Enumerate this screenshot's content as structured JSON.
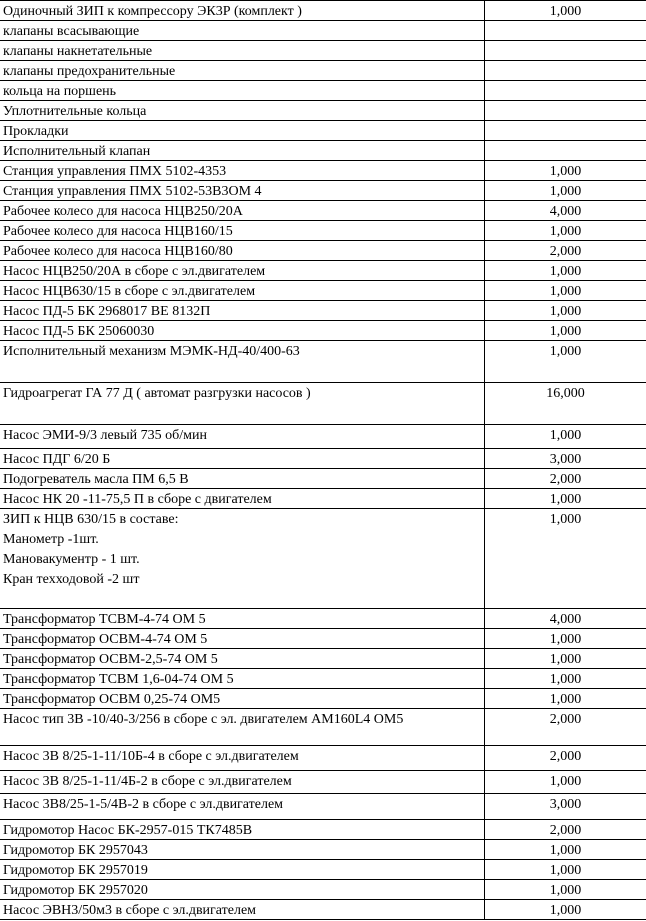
{
  "table": {
    "rows": [
      {
        "name": [
          "Одиночный ЗИП к компрессору ЭК3Р (комплект )"
        ],
        "qty": "1,000"
      },
      {
        "name": [
          "клапаны всасывающие"
        ],
        "qty": ""
      },
      {
        "name": [
          "клапаны накнетательные"
        ],
        "qty": ""
      },
      {
        "name": [
          "клапаны предохранительные"
        ],
        "qty": ""
      },
      {
        "name": [
          "кольца на поршень"
        ],
        "qty": ""
      },
      {
        "name": [
          "Уплотнительные кольца"
        ],
        "qty": ""
      },
      {
        "name": [
          "Прокладки"
        ],
        "qty": ""
      },
      {
        "name": [
          "Исполнительный клапан"
        ],
        "qty": ""
      },
      {
        "name": [
          "Станция управления ПМХ 5102-4353"
        ],
        "qty": "1,000"
      },
      {
        "name": [
          "Станция управления ПМХ 5102-53В3ОМ 4"
        ],
        "qty": "1,000"
      },
      {
        "name": [
          "Рабочее колесо для насоса НЦВ250/20А"
        ],
        "qty": "4,000"
      },
      {
        "name": [
          "Рабочее колесо для насоса НЦВ160/15"
        ],
        "qty": "1,000"
      },
      {
        "name": [
          "Рабочее колесо для насоса НЦВ160/80"
        ],
        "qty": "2,000"
      },
      {
        "name": [
          "Насос НЦВ250/20А в сборе с эл.двигателем"
        ],
        "qty": "1,000"
      },
      {
        "name": [
          "Насос НЦВ630/15 в сборе с эл.двигателем"
        ],
        "qty": "1,000"
      },
      {
        "name": [
          "Насос ПД-5 БК 2968017 ВЕ 8132П"
        ],
        "qty": "1,000"
      },
      {
        "name": [
          "Насос ПД-5 БК 25060030"
        ],
        "qty": "1,000"
      },
      {
        "name": [
          "Исполнительный механизм МЭМК-НД-40/400-63"
        ],
        "qty": "1,000"
      },
      {
        "name": [
          "Гидроагрегат ГА 77 Д  ( автомат разгрузки насосов )"
        ],
        "qty": "16,000"
      },
      {
        "name": [
          "Насос ЭМИ-9/3 левый 735 об/мин"
        ],
        "qty": "1,000"
      },
      {
        "name": [
          "Насос ПДГ 6/20 Б"
        ],
        "qty": "3,000"
      },
      {
        "name": [
          "Подогреватель масла ПМ 6,5 В"
        ],
        "qty": "2,000"
      },
      {
        "name": [
          "Насос НК 20 -11-75,5 П в сборе с двигателем"
        ],
        "qty": "1,000"
      },
      {
        "name": [
          "ЗИП к НЦВ 630/15 в составе:",
          "Манометр -1шт.",
          "Мановакументр - 1 шт.",
          "Кран техходовой -2 шт"
        ],
        "qty": "1,000"
      },
      {
        "name": [
          "Трансформатор ТСВМ-4-74 ОМ 5"
        ],
        "qty": "4,000"
      },
      {
        "name": [
          "Трансформатор ОСВМ-4-74 ОМ 5"
        ],
        "qty": "1,000"
      },
      {
        "name": [
          "Трансформатор ОСВМ-2,5-74 ОМ 5"
        ],
        "qty": "1,000"
      },
      {
        "name": [
          "Трансформатор ТСВМ 1,6-04-74 ОМ 5"
        ],
        "qty": "1,000"
      },
      {
        "name": [
          "Трансформатор ОСВМ 0,25-74 ОМ5"
        ],
        "qty": "1,000"
      },
      {
        "name": [
          "Насос  тип 3В -10/40-3/256 в сборе с эл. двигателем АМ160L4 ОМ5"
        ],
        "qty": "2,000"
      },
      {
        "name": [
          "Насос 3В 8/25-1-11/10Б-4 в сборе с эл.двигателем"
        ],
        "qty": "2,000"
      },
      {
        "name": [
          "Насос 3В 8/25-1-11/4Б-2 в сборе с эл.двигателем"
        ],
        "qty": "1,000"
      },
      {
        "name": [
          "Насос 3В8/25-1-5/4В-2 в сборе с эл.двигателем"
        ],
        "qty": "3,000"
      },
      {
        "name": [
          "Гидромотор Насос БК-2957-015 ТК7485В"
        ],
        "qty": "2,000"
      },
      {
        "name": [
          "Гидромотор БК 2957043"
        ],
        "qty": "1,000"
      },
      {
        "name": [
          "Гидромотор БК 2957019"
        ],
        "qty": "1,000"
      },
      {
        "name": [
          "Гидромотор БК 2957020"
        ],
        "qty": "1,000"
      },
      {
        "name": [
          "Насос ЭВН3/50м3 в сборе с эл.двигателем"
        ],
        "qty": "1,000"
      }
    ]
  }
}
